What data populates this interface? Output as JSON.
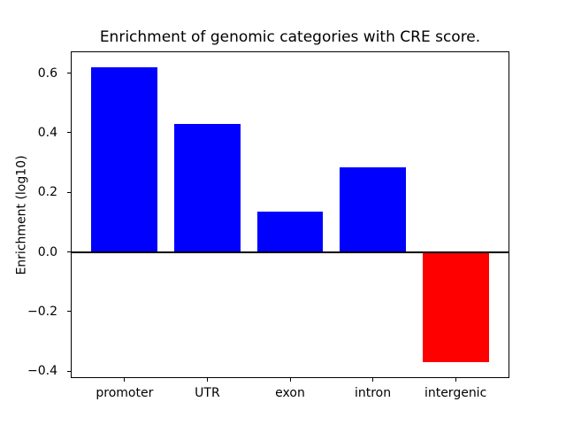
{
  "chart_data": {
    "type": "bar",
    "title": "Enrichment of genomic categories with CRE score.",
    "xlabel": "",
    "ylabel": "Enrichment (log10)",
    "categories": [
      "promoter",
      "UTR",
      "exon",
      "intron",
      "intergenic"
    ],
    "values": [
      0.62,
      0.43,
      0.135,
      0.285,
      -0.37
    ],
    "bar_colors": [
      "#0000ff",
      "#0000ff",
      "#0000ff",
      "#0000ff",
      "#ff0000"
    ],
    "positive_color": "#0000ff",
    "negative_color": "#ff0000",
    "bar_width_frac": 0.8,
    "x_range": [
      -0.64,
      4.64
    ],
    "ylim": [
      -0.42,
      0.67
    ],
    "yticks": [
      -0.4,
      -0.2,
      0.0,
      0.2,
      0.4,
      0.6
    ],
    "ytick_labels": [
      "−0.4",
      "−0.2",
      "0.0",
      "0.2",
      "0.4",
      "0.6"
    ],
    "zero_line": true,
    "grid": false,
    "legend": null,
    "axis_color": "#000000",
    "background_color": "#ffffff"
  }
}
